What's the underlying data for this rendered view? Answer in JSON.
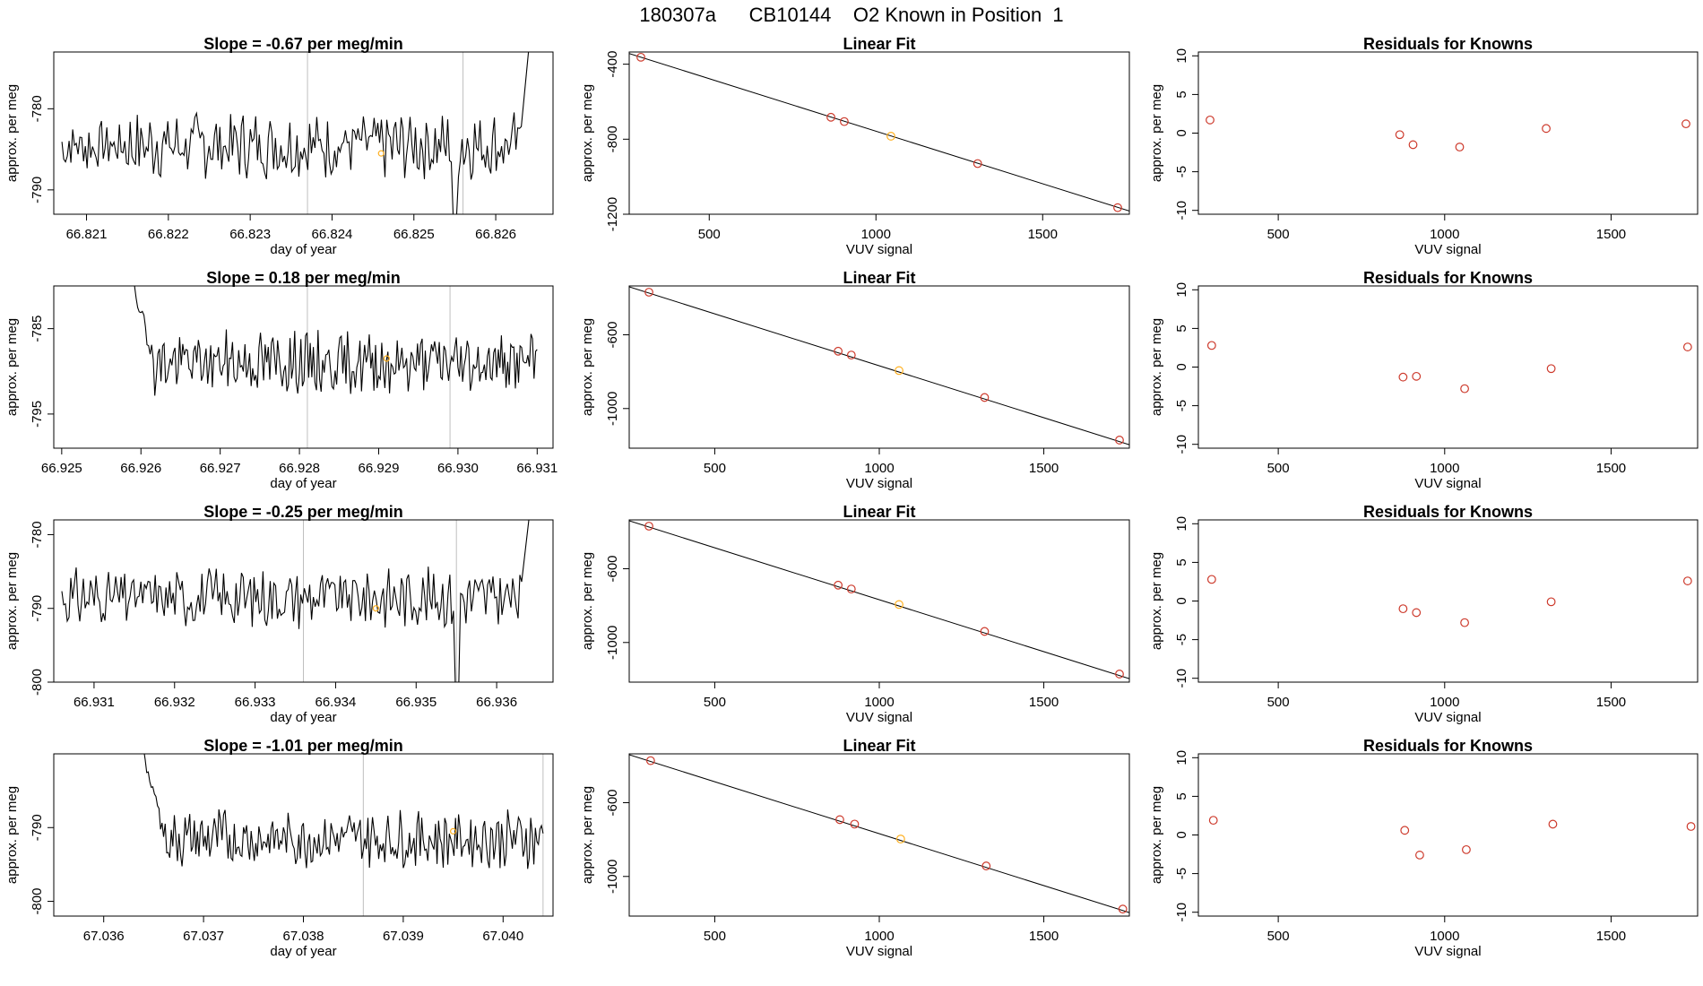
{
  "page": {
    "title": "180307a      CB10144    O2 Known in Position  1"
  },
  "colors": {
    "line": "#000000",
    "marker": "#cd3a2c",
    "highlight": "#ffb020",
    "vline": "#bfbfbf",
    "frame": "#000000"
  },
  "chart_data": [
    {
      "type": "line",
      "panel": "drift-1",
      "title": "Slope =  -0.67  per meg/min",
      "xlabel": "day of year",
      "ylabel": "approx. per meg",
      "xlim": [
        66.8206,
        66.8267
      ],
      "ylim": [
        -793,
        -773
      ],
      "xticks": [
        66.821,
        66.822,
        66.823,
        66.824,
        66.825,
        66.826
      ],
      "xtick_labels": [
        "66.821",
        "66.822",
        "66.823",
        "66.824",
        "66.825",
        "66.826"
      ],
      "yticks": [
        -780,
        -790
      ],
      "ytick_labels": [
        "-780",
        "-790"
      ],
      "series": [
        {
          "start": 66.8207,
          "end": 66.8264,
          "level": -784.5,
          "amplitude": 2.5,
          "startspike": null,
          "endspike": -773,
          "dip": {
            "x": 66.8255,
            "y": -793
          },
          "seed": 7
        }
      ],
      "vlines": [
        66.8237,
        66.8256
      ],
      "highlight_point": {
        "x": 66.8246,
        "y": -785.5
      }
    },
    {
      "type": "scatter",
      "panel": "fit-1",
      "title": "Linear Fit",
      "xlabel": "VUV signal",
      "ylabel": "approx. per meg",
      "xlim": [
        260,
        1760
      ],
      "ylim": [
        -1200,
        -335
      ],
      "xticks": [
        500,
        1000,
        1500
      ],
      "xtick_labels": [
        "500",
        "1000",
        "1500"
      ],
      "yticks": [
        -400,
        -800,
        -1200
      ],
      "ytick_labels": [
        "-400",
        "-800",
        "-1200"
      ],
      "fit_line": [
        {
          "x": 260,
          "y": -343
        },
        {
          "x": 1760,
          "y": -1183
        }
      ],
      "points": [
        {
          "x": 295,
          "y": -363
        },
        {
          "x": 865,
          "y": -683
        },
        {
          "x": 905,
          "y": -706
        },
        {
          "x": 1045,
          "y": -784,
          "highlight": true
        },
        {
          "x": 1305,
          "y": -930
        },
        {
          "x": 1725,
          "y": -1165
        }
      ]
    },
    {
      "type": "scatter",
      "panel": "resid-1",
      "title": "Residuals for Knowns",
      "xlabel": "VUV signal",
      "ylabel": "approx. per meg",
      "xlim": [
        260,
        1760
      ],
      "ylim": [
        -10.5,
        10.5
      ],
      "xticks": [
        500,
        1000,
        1500
      ],
      "xtick_labels": [
        "500",
        "1000",
        "1500"
      ],
      "yticks": [
        10,
        5,
        0,
        -5,
        -10
      ],
      "ytick_labels": [
        "10",
        "5",
        "0",
        "-5",
        "-10"
      ],
      "points": [
        {
          "x": 295,
          "y": 1.7
        },
        {
          "x": 865,
          "y": -0.2
        },
        {
          "x": 905,
          "y": -1.5
        },
        {
          "x": 1045,
          "y": -1.8
        },
        {
          "x": 1305,
          "y": 0.6
        },
        {
          "x": 1725,
          "y": 1.2
        }
      ]
    },
    {
      "type": "line",
      "panel": "drift-2",
      "title": "Slope =  0.18  per meg/min",
      "xlabel": "day of year",
      "ylabel": "approx. per meg",
      "xlim": [
        66.9249,
        66.9312
      ],
      "ylim": [
        -799,
        -780
      ],
      "xticks": [
        66.925,
        66.926,
        66.927,
        66.928,
        66.929,
        66.93,
        66.931
      ],
      "xtick_labels": [
        "66.925",
        "66.926",
        "66.927",
        "66.928",
        "66.929",
        "66.930",
        "66.931"
      ],
      "yticks": [
        -785,
        -795
      ],
      "ytick_labels": [
        "-785",
        "-795"
      ],
      "series": [
        {
          "start": 66.9259,
          "end": 66.931,
          "level": -789,
          "amplitude": 2.2,
          "startspike": -780,
          "endspike": null,
          "dip": null,
          "seed": 19
        }
      ],
      "vlines": [
        66.9281,
        66.9299
      ],
      "highlight_point": {
        "x": 66.9291,
        "y": -788.5
      }
    },
    {
      "type": "scatter",
      "panel": "fit-2",
      "title": "Linear Fit",
      "xlabel": "VUV signal",
      "ylabel": "approx. per meg",
      "xlim": [
        240,
        1760
      ],
      "ylim": [
        -1215,
        -335
      ],
      "xticks": [
        500,
        1000,
        1500
      ],
      "xtick_labels": [
        "500",
        "1000",
        "1500"
      ],
      "yticks": [
        -600,
        -1000
      ],
      "ytick_labels": [
        "-600",
        "-1000"
      ],
      "fit_line": [
        {
          "x": 240,
          "y": -340
        },
        {
          "x": 1760,
          "y": -1196
        }
      ],
      "points": [
        {
          "x": 300,
          "y": -369
        },
        {
          "x": 875,
          "y": -689
        },
        {
          "x": 915,
          "y": -710
        },
        {
          "x": 1060,
          "y": -794,
          "highlight": true
        },
        {
          "x": 1320,
          "y": -940
        },
        {
          "x": 1730,
          "y": -1171
        }
      ]
    },
    {
      "type": "scatter",
      "panel": "resid-2",
      "title": "Residuals for Knowns",
      "xlabel": "VUV signal",
      "ylabel": "approx. per meg",
      "xlim": [
        260,
        1760
      ],
      "ylim": [
        -10.5,
        10.5
      ],
      "xticks": [
        500,
        1000,
        1500
      ],
      "xtick_labels": [
        "500",
        "1000",
        "1500"
      ],
      "yticks": [
        10,
        5,
        0,
        -5,
        -10
      ],
      "ytick_labels": [
        "10",
        "5",
        "0",
        "-5",
        "-10"
      ],
      "points": [
        {
          "x": 300,
          "y": 2.8
        },
        {
          "x": 875,
          "y": -1.3
        },
        {
          "x": 915,
          "y": -1.2
        },
        {
          "x": 1060,
          "y": -2.8
        },
        {
          "x": 1320,
          "y": -0.2
        },
        {
          "x": 1730,
          "y": 2.6
        }
      ]
    },
    {
      "type": "line",
      "panel": "drift-3",
      "title": "Slope =  -0.25  per meg/min",
      "xlabel": "day of year",
      "ylabel": "approx. per meg",
      "xlim": [
        66.9305,
        66.9367
      ],
      "ylim": [
        -800,
        -778
      ],
      "xticks": [
        66.931,
        66.932,
        66.933,
        66.934,
        66.935,
        66.936
      ],
      "xtick_labels": [
        "66.931",
        "66.932",
        "66.933",
        "66.934",
        "66.935",
        "66.936"
      ],
      "yticks": [
        -780,
        -790,
        -800
      ],
      "ytick_labels": [
        "-780",
        "-790",
        "-800"
      ],
      "series": [
        {
          "start": 66.9306,
          "end": 66.9364,
          "level": -788.5,
          "amplitude": 2.4,
          "startspike": null,
          "endspike": -778,
          "dip": {
            "x": 66.9355,
            "y": -800
          },
          "seed": 31
        }
      ],
      "vlines": [
        66.9336,
        66.9355
      ],
      "highlight_point": {
        "x": 66.9345,
        "y": -790
      }
    },
    {
      "type": "scatter",
      "panel": "fit-3",
      "title": "Linear Fit",
      "xlabel": "VUV signal",
      "ylabel": "approx. per meg",
      "xlim": [
        240,
        1760
      ],
      "ylim": [
        -1215,
        -335
      ],
      "xticks": [
        500,
        1000,
        1500
      ],
      "xtick_labels": [
        "500",
        "1000",
        "1500"
      ],
      "yticks": [
        -600,
        -1000
      ],
      "ytick_labels": [
        "-600",
        "-1000"
      ],
      "fit_line": [
        {
          "x": 240,
          "y": -340
        },
        {
          "x": 1760,
          "y": -1196
        }
      ],
      "points": [
        {
          "x": 300,
          "y": -369
        },
        {
          "x": 875,
          "y": -689
        },
        {
          "x": 915,
          "y": -710
        },
        {
          "x": 1060,
          "y": -794,
          "highlight": true
        },
        {
          "x": 1320,
          "y": -940
        },
        {
          "x": 1730,
          "y": -1171
        }
      ]
    },
    {
      "type": "scatter",
      "panel": "resid-3",
      "title": "Residuals for Knowns",
      "xlabel": "VUV signal",
      "ylabel": "approx. per meg",
      "xlim": [
        260,
        1760
      ],
      "ylim": [
        -10.5,
        10.5
      ],
      "xticks": [
        500,
        1000,
        1500
      ],
      "xtick_labels": [
        "500",
        "1000",
        "1500"
      ],
      "yticks": [
        10,
        5,
        0,
        -5,
        -10
      ],
      "ytick_labels": [
        "10",
        "5",
        "0",
        "-5",
        "-10"
      ],
      "points": [
        {
          "x": 300,
          "y": 2.8
        },
        {
          "x": 875,
          "y": -1.0
        },
        {
          "x": 915,
          "y": -1.5
        },
        {
          "x": 1060,
          "y": -2.8
        },
        {
          "x": 1320,
          "y": -0.1
        },
        {
          "x": 1730,
          "y": 2.6
        }
      ]
    },
    {
      "type": "line",
      "panel": "drift-4",
      "title": "Slope =  -1.01  per meg/min",
      "xlabel": "day of year",
      "ylabel": "approx. per meg",
      "xlim": [
        67.0355,
        67.0405
      ],
      "ylim": [
        -802,
        -780
      ],
      "xticks": [
        67.036,
        67.037,
        67.038,
        67.039,
        67.04
      ],
      "xtick_labels": [
        "67.036",
        "67.037",
        "67.038",
        "67.039",
        "67.040"
      ],
      "yticks": [
        -790,
        -800
      ],
      "ytick_labels": [
        "-790",
        "-800"
      ],
      "series": [
        {
          "start": 67.0364,
          "end": 67.0404,
          "level": -791.5,
          "amplitude": 2.4,
          "startspike": -780,
          "endspike": null,
          "dip": null,
          "seed": 43
        }
      ],
      "vlines": [
        67.0386,
        67.0404
      ],
      "highlight_point": {
        "x": 67.0395,
        "y": -790.5
      }
    },
    {
      "type": "scatter",
      "panel": "fit-4",
      "title": "Linear Fit",
      "xlabel": "VUV signal",
      "ylabel": "approx. per meg",
      "xlim": [
        240,
        1760
      ],
      "ylim": [
        -1215,
        -335
      ],
      "xticks": [
        500,
        1000,
        1500
      ],
      "xtick_labels": [
        "500",
        "1000",
        "1500"
      ],
      "yticks": [
        -600,
        -1000
      ],
      "ytick_labels": [
        "-600",
        "-1000"
      ],
      "fit_line": [
        {
          "x": 240,
          "y": -340
        },
        {
          "x": 1760,
          "y": -1196
        }
      ],
      "points": [
        {
          "x": 305,
          "y": -372
        },
        {
          "x": 880,
          "y": -692
        },
        {
          "x": 925,
          "y": -716
        },
        {
          "x": 1065,
          "y": -797,
          "highlight": true
        },
        {
          "x": 1325,
          "y": -943
        },
        {
          "x": 1740,
          "y": -1177
        }
      ]
    },
    {
      "type": "scatter",
      "panel": "resid-4",
      "title": "Residuals for Knowns",
      "xlabel": "VUV signal",
      "ylabel": "approx. per meg",
      "xlim": [
        260,
        1760
      ],
      "ylim": [
        -10.5,
        10.5
      ],
      "xticks": [
        500,
        1000,
        1500
      ],
      "xtick_labels": [
        "500",
        "1000",
        "1500"
      ],
      "yticks": [
        10,
        5,
        0,
        -5,
        -10
      ],
      "ytick_labels": [
        "10",
        "5",
        "0",
        "-5",
        "-10"
      ],
      "points": [
        {
          "x": 305,
          "y": 1.9
        },
        {
          "x": 880,
          "y": 0.6
        },
        {
          "x": 925,
          "y": -2.6
        },
        {
          "x": 1065,
          "y": -1.9
        },
        {
          "x": 1325,
          "y": 1.4
        },
        {
          "x": 1740,
          "y": 1.1
        }
      ]
    }
  ]
}
